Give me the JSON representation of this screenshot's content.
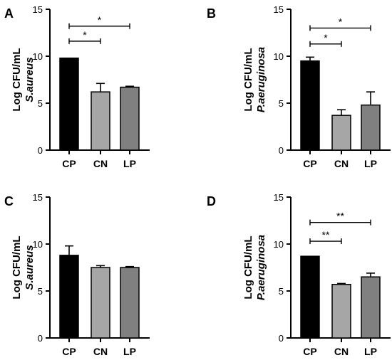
{
  "chart_data": [
    {
      "panel": "A",
      "type": "bar",
      "ylabel": "Log CFU/mL",
      "ylabel_organism": "S.aureus",
      "categories": [
        "CP",
        "CN",
        "LP"
      ],
      "values": [
        9.8,
        6.2,
        6.7
      ],
      "errors": [
        0,
        0.9,
        0.1
      ],
      "colors": [
        "#000000",
        "#a6a6a6",
        "#808080"
      ],
      "ylim": [
        0,
        15
      ],
      "yticks": [
        "0",
        "5",
        "10",
        "15"
      ],
      "significance": [
        {
          "from": 0,
          "to": 1,
          "label": "*",
          "level": 11.6
        },
        {
          "from": 0,
          "to": 2,
          "label": "*",
          "level": 13.2
        }
      ]
    },
    {
      "panel": "B",
      "type": "bar",
      "ylabel": "Log CFU/mL",
      "ylabel_organism": "P.aeruginosa",
      "categories": [
        "CP",
        "CN",
        "LP"
      ],
      "values": [
        9.5,
        3.7,
        4.8
      ],
      "errors": [
        0.4,
        0.6,
        1.4
      ],
      "colors": [
        "#000000",
        "#a6a6a6",
        "#808080"
      ],
      "ylim": [
        0,
        15
      ],
      "yticks": [
        "0",
        "5",
        "10",
        "15"
      ],
      "significance": [
        {
          "from": 0,
          "to": 1,
          "label": "*",
          "level": 11.3
        },
        {
          "from": 0,
          "to": 2,
          "label": "*",
          "level": 13.0
        }
      ]
    },
    {
      "panel": "C",
      "type": "bar",
      "ylabel": "Log CFU/mL",
      "ylabel_organism": "S.aureus",
      "categories": [
        "CP",
        "CN",
        "LP"
      ],
      "values": [
        8.8,
        7.5,
        7.5
      ],
      "errors": [
        1.0,
        0.2,
        0.1
      ],
      "colors": [
        "#000000",
        "#a6a6a6",
        "#808080"
      ],
      "ylim": [
        0,
        15
      ],
      "yticks": [
        "0",
        "5",
        "10",
        "15"
      ],
      "significance": []
    },
    {
      "panel": "D",
      "type": "bar",
      "ylabel": "Log CFU/mL",
      "ylabel_organism": "P.aeruginosa",
      "categories": [
        "CP",
        "CN",
        "LP"
      ],
      "values": [
        8.7,
        5.7,
        6.5
      ],
      "errors": [
        0,
        0.1,
        0.4
      ],
      "colors": [
        "#000000",
        "#a6a6a6",
        "#808080"
      ],
      "ylim": [
        0,
        15
      ],
      "yticks": [
        "0",
        "5",
        "10",
        "15"
      ],
      "significance": [
        {
          "from": 0,
          "to": 1,
          "label": "**",
          "level": 10.3
        },
        {
          "from": 0,
          "to": 2,
          "label": "**",
          "level": 12.3
        }
      ]
    }
  ]
}
